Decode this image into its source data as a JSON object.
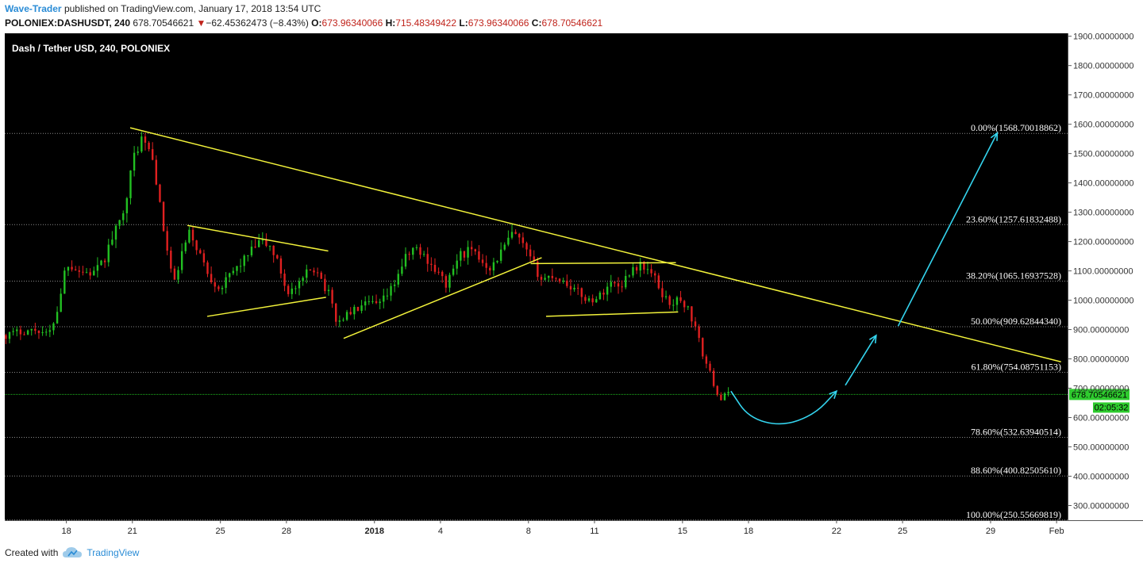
{
  "header": {
    "author": "Wave-Trader",
    "published_text": "published on TradingView.com, January 17, 2018 13:54 UTC",
    "symbol": "POLONIEX:DASHUSDT, 240",
    "last": "678.70546621",
    "change": "−62.45362473 (−8.43%)",
    "o_label": "O:",
    "o": "673.96340066",
    "h_label": "H:",
    "h": "715.48349422",
    "l_label": "L:",
    "l": "673.96340066",
    "c_label": "C:",
    "c": "678.70546621"
  },
  "footer": {
    "created_with": "Created with",
    "brand": "TradingView"
  },
  "colors": {
    "background": "#000000",
    "up": "#22c022",
    "down": "#e02020",
    "trendline": "#f2f23a",
    "projection": "#34d4ee",
    "fib_line": "#8a8a8a",
    "price_line": "#1fb81f"
  },
  "chart_data": {
    "type": "candlestick",
    "title": "Dash / Tether USD, 240, POLONIEX",
    "x_tick_labels": [
      "18",
      "21",
      "25",
      "28",
      "2018",
      "4",
      "8",
      "11",
      "15",
      "18",
      "22",
      "25",
      "29",
      "Feb"
    ],
    "x_ticks_days": [
      18,
      21,
      25,
      28,
      32,
      35,
      39,
      42,
      46,
      49,
      53,
      56,
      60,
      63
    ],
    "x_range_days": [
      15.2,
      63.5
    ],
    "y_range": [
      250,
      1910
    ],
    "y_tick_values": [
      300,
      400,
      500,
      600,
      700,
      800,
      900,
      1000,
      1100,
      1200,
      1300,
      1400,
      1500,
      1600,
      1700,
      1800,
      1900
    ],
    "y_tick_labels": [
      "300.00000000",
      "400.00000000",
      "500.00000000",
      "600.00000000",
      "700.00000000",
      "800.00000000",
      "900.00000000",
      "1000.00000000",
      "1100.00000000",
      "1200.00000000",
      "1300.00000000",
      "1400.00000000",
      "1500.00000000",
      "1600.00000000",
      "1700.00000000",
      "1800.00000000",
      "1900.00000000"
    ],
    "last_price": {
      "value": 678.70546621,
      "label": "678.70546621",
      "countdown": "02:05:32"
    },
    "fib_levels": [
      {
        "value": 1568.70018862,
        "label": "0.00%(1568.70018862)"
      },
      {
        "value": 1257.61832488,
        "label": "23.60%(1257.61832488)"
      },
      {
        "value": 1065.16937528,
        "label": "38.20%(1065.16937528)"
      },
      {
        "value": 909.6284434,
        "label": "50.00%(909.62844340)"
      },
      {
        "value": 754.08751153,
        "label": "61.80%(754.08751153)"
      },
      {
        "value": 532.63940514,
        "label": "78.60%(532.63940514)"
      },
      {
        "value": 400.8250561,
        "label": "88.60%(400.82505610)"
      },
      {
        "value": 250.55669819,
        "label": "100.00%(250.55669819)"
      }
    ],
    "price_path": [
      [
        15.2,
        880
      ],
      [
        16.0,
        895
      ],
      [
        16.7,
        900
      ],
      [
        17.2,
        880
      ],
      [
        17.6,
        970
      ],
      [
        18.0,
        1130
      ],
      [
        18.6,
        1100
      ],
      [
        19.2,
        1090
      ],
      [
        19.7,
        1130
      ],
      [
        20.0,
        1200
      ],
      [
        20.4,
        1260
      ],
      [
        20.8,
        1380
      ],
      [
        21.1,
        1500
      ],
      [
        21.4,
        1550
      ],
      [
        21.7,
        1520
      ],
      [
        22.0,
        1460
      ],
      [
        22.3,
        1290
      ],
      [
        22.6,
        1160
      ],
      [
        22.9,
        1050
      ],
      [
        23.2,
        1150
      ],
      [
        23.6,
        1230
      ],
      [
        24.0,
        1170
      ],
      [
        24.5,
        1080
      ],
      [
        25.0,
        1040
      ],
      [
        25.6,
        1100
      ],
      [
        26.2,
        1150
      ],
      [
        26.8,
        1200
      ],
      [
        27.3,
        1180
      ],
      [
        27.7,
        1110
      ],
      [
        28.0,
        1030
      ],
      [
        28.5,
        1040
      ],
      [
        29.0,
        1100
      ],
      [
        29.4,
        1110
      ],
      [
        29.7,
        1050
      ],
      [
        30.0,
        1010
      ],
      [
        30.3,
        920
      ],
      [
        30.7,
        950
      ],
      [
        31.2,
        970
      ],
      [
        31.8,
        990
      ],
      [
        32.2,
        980
      ],
      [
        32.8,
        1040
      ],
      [
        33.3,
        1130
      ],
      [
        33.8,
        1180
      ],
      [
        34.4,
        1140
      ],
      [
        34.9,
        1090
      ],
      [
        35.3,
        1050
      ],
      [
        35.8,
        1150
      ],
      [
        36.3,
        1170
      ],
      [
        36.8,
        1140
      ],
      [
        37.3,
        1110
      ],
      [
        37.8,
        1170
      ],
      [
        38.3,
        1230
      ],
      [
        38.7,
        1190
      ],
      [
        39.0,
        1150
      ],
      [
        39.3,
        1110
      ],
      [
        39.6,
        1070
      ],
      [
        40.1,
        1085
      ],
      [
        40.7,
        1060
      ],
      [
        41.2,
        1030
      ],
      [
        41.7,
        1000
      ],
      [
        42.2,
        1010
      ],
      [
        42.7,
        1060
      ],
      [
        43.2,
        1050
      ],
      [
        43.7,
        1110
      ],
      [
        44.2,
        1120
      ],
      [
        44.7,
        1080
      ],
      [
        45.0,
        1030
      ],
      [
        45.4,
        990
      ],
      [
        45.8,
        1000
      ],
      [
        46.2,
        980
      ],
      [
        46.6,
        900
      ],
      [
        46.9,
        820
      ],
      [
        47.2,
        760
      ],
      [
        47.5,
        700
      ],
      [
        47.7,
        660
      ],
      [
        48.0,
        680
      ],
      [
        48.2,
        679
      ]
    ],
    "trendlines": [
      {
        "from": [
          20.9,
          1588
        ],
        "to": [
          63.2,
          790
        ]
      },
      {
        "from": [
          23.5,
          1255
        ],
        "to": [
          29.9,
          1168
        ]
      },
      {
        "from": [
          24.4,
          945
        ],
        "to": [
          29.8,
          1010
        ]
      },
      {
        "from": [
          30.6,
          870
        ],
        "to": [
          39.6,
          1145
        ]
      },
      {
        "from": [
          39.1,
          1125
        ],
        "to": [
          45.7,
          1128
        ]
      },
      {
        "from": [
          39.8,
          945
        ],
        "to": [
          45.8,
          960
        ]
      }
    ],
    "projection_curve": [
      [
        48.2,
        690
      ],
      [
        49.0,
        600
      ],
      [
        50.5,
        570
      ],
      [
        52.0,
        610
      ],
      [
        53.0,
        690
      ]
    ],
    "projection_arrows": [
      {
        "from": [
          53.4,
          710
        ],
        "to": [
          54.8,
          880
        ]
      },
      {
        "from": [
          55.8,
          912
        ],
        "to": [
          60.3,
          1570
        ]
      }
    ]
  }
}
